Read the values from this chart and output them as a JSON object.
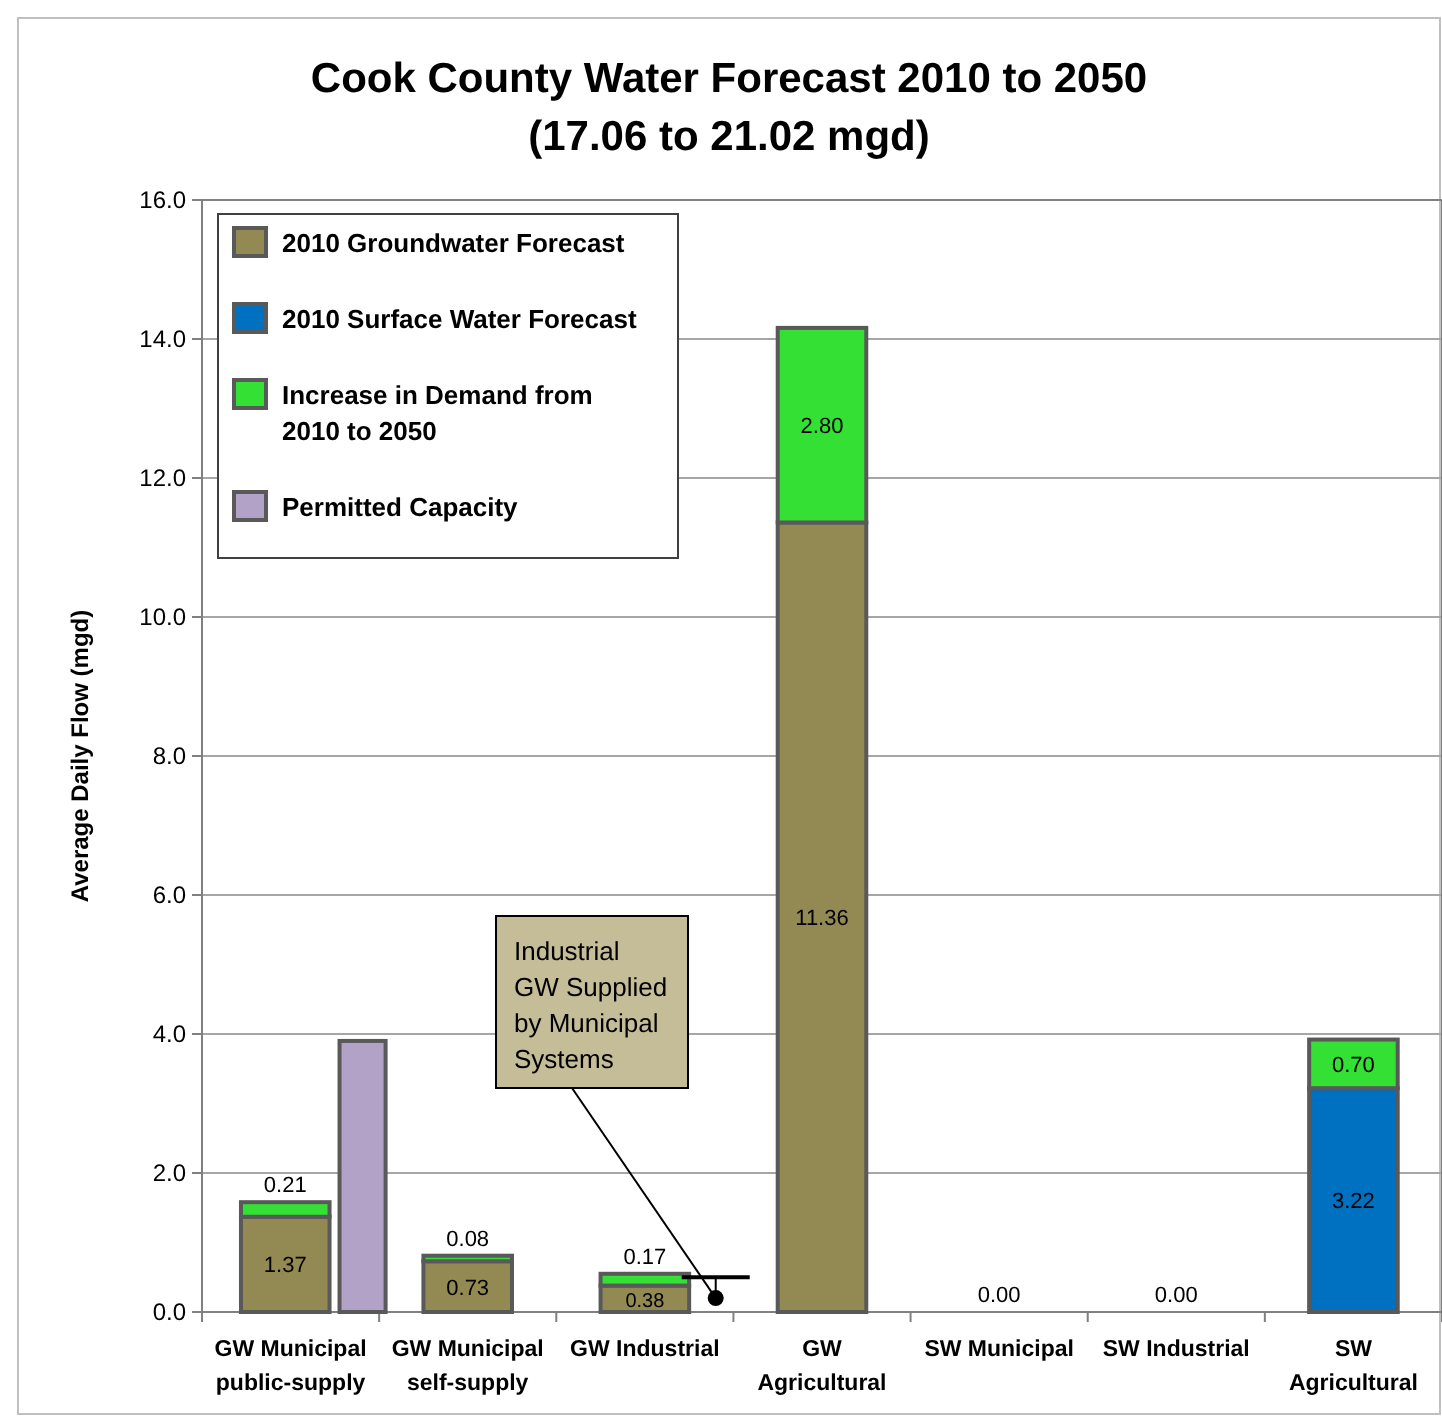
{
  "chart_data": {
    "type": "bar",
    "title": "Cook County Water Forecast 2010 to 2050",
    "subtitle": "(17.06 to 21.02 mgd)",
    "ylabel": "Average Daily Flow (mgd)",
    "categories": [
      "GW Municipal public-supply",
      "GW Municipal self-supply",
      "GW Industrial",
      "GW Agricultural",
      "SW Municipal",
      "SW Industrial",
      "SW Agricultural"
    ],
    "grid": "y",
    "legend": "top left",
    "ylim": [
      0,
      16
    ],
    "yticks": [
      {
        "value": 0,
        "label": "0.0"
      },
      {
        "value": 2,
        "label": "2.0"
      },
      {
        "value": 4,
        "label": "4.0"
      },
      {
        "value": 6,
        "label": "6.0"
      },
      {
        "value": 8,
        "label": "8.0"
      },
      {
        "value": 10,
        "label": "10.0"
      },
      {
        "value": 12,
        "label": "12.0"
      },
      {
        "value": 14,
        "label": "14.0"
      },
      {
        "value": 16,
        "label": "16.0"
      }
    ],
    "series": [
      {
        "name": "2010 Groundwater Forecast",
        "color": "#938953",
        "values": [
          1.37,
          0.73,
          0.38,
          11.36,
          null,
          null,
          null
        ],
        "base": [
          0,
          0,
          0,
          0,
          null,
          null,
          null
        ],
        "value_labels": [
          "1.37",
          "0.73",
          "0.38",
          "11.36",
          null,
          null,
          null
        ]
      },
      {
        "name": "2010 Surface Water Forecast",
        "color": "#0070c0",
        "values": [
          null,
          null,
          null,
          null,
          0,
          0,
          3.22
        ],
        "base": [
          null,
          null,
          null,
          null,
          null,
          null,
          0
        ],
        "value_labels": [
          null,
          null,
          null,
          null,
          "0.00",
          "0.00",
          "3.22"
        ]
      },
      {
        "name": "Increase in Demand from 2010 to 2050",
        "color": "#33e033",
        "values": [
          0.21,
          0.08,
          0.17,
          2.8,
          null,
          null,
          0.7
        ],
        "base": [
          1.37,
          0.73,
          0.38,
          11.36,
          null,
          null,
          3.22
        ],
        "value_labels": [
          "0.21",
          "0.08",
          "0.17",
          "2.80",
          null,
          null,
          "0.70"
        ]
      },
      {
        "name": "Permitted Capacity",
        "color": "#b3a2c7",
        "values": [
          3.9,
          null,
          null,
          null,
          null,
          null,
          null
        ],
        "base": [
          0,
          null,
          null,
          null,
          null,
          null,
          null
        ]
      }
    ],
    "annotations": [
      "Industrial GW Supplied by Municipal Systems"
    ]
  }
}
